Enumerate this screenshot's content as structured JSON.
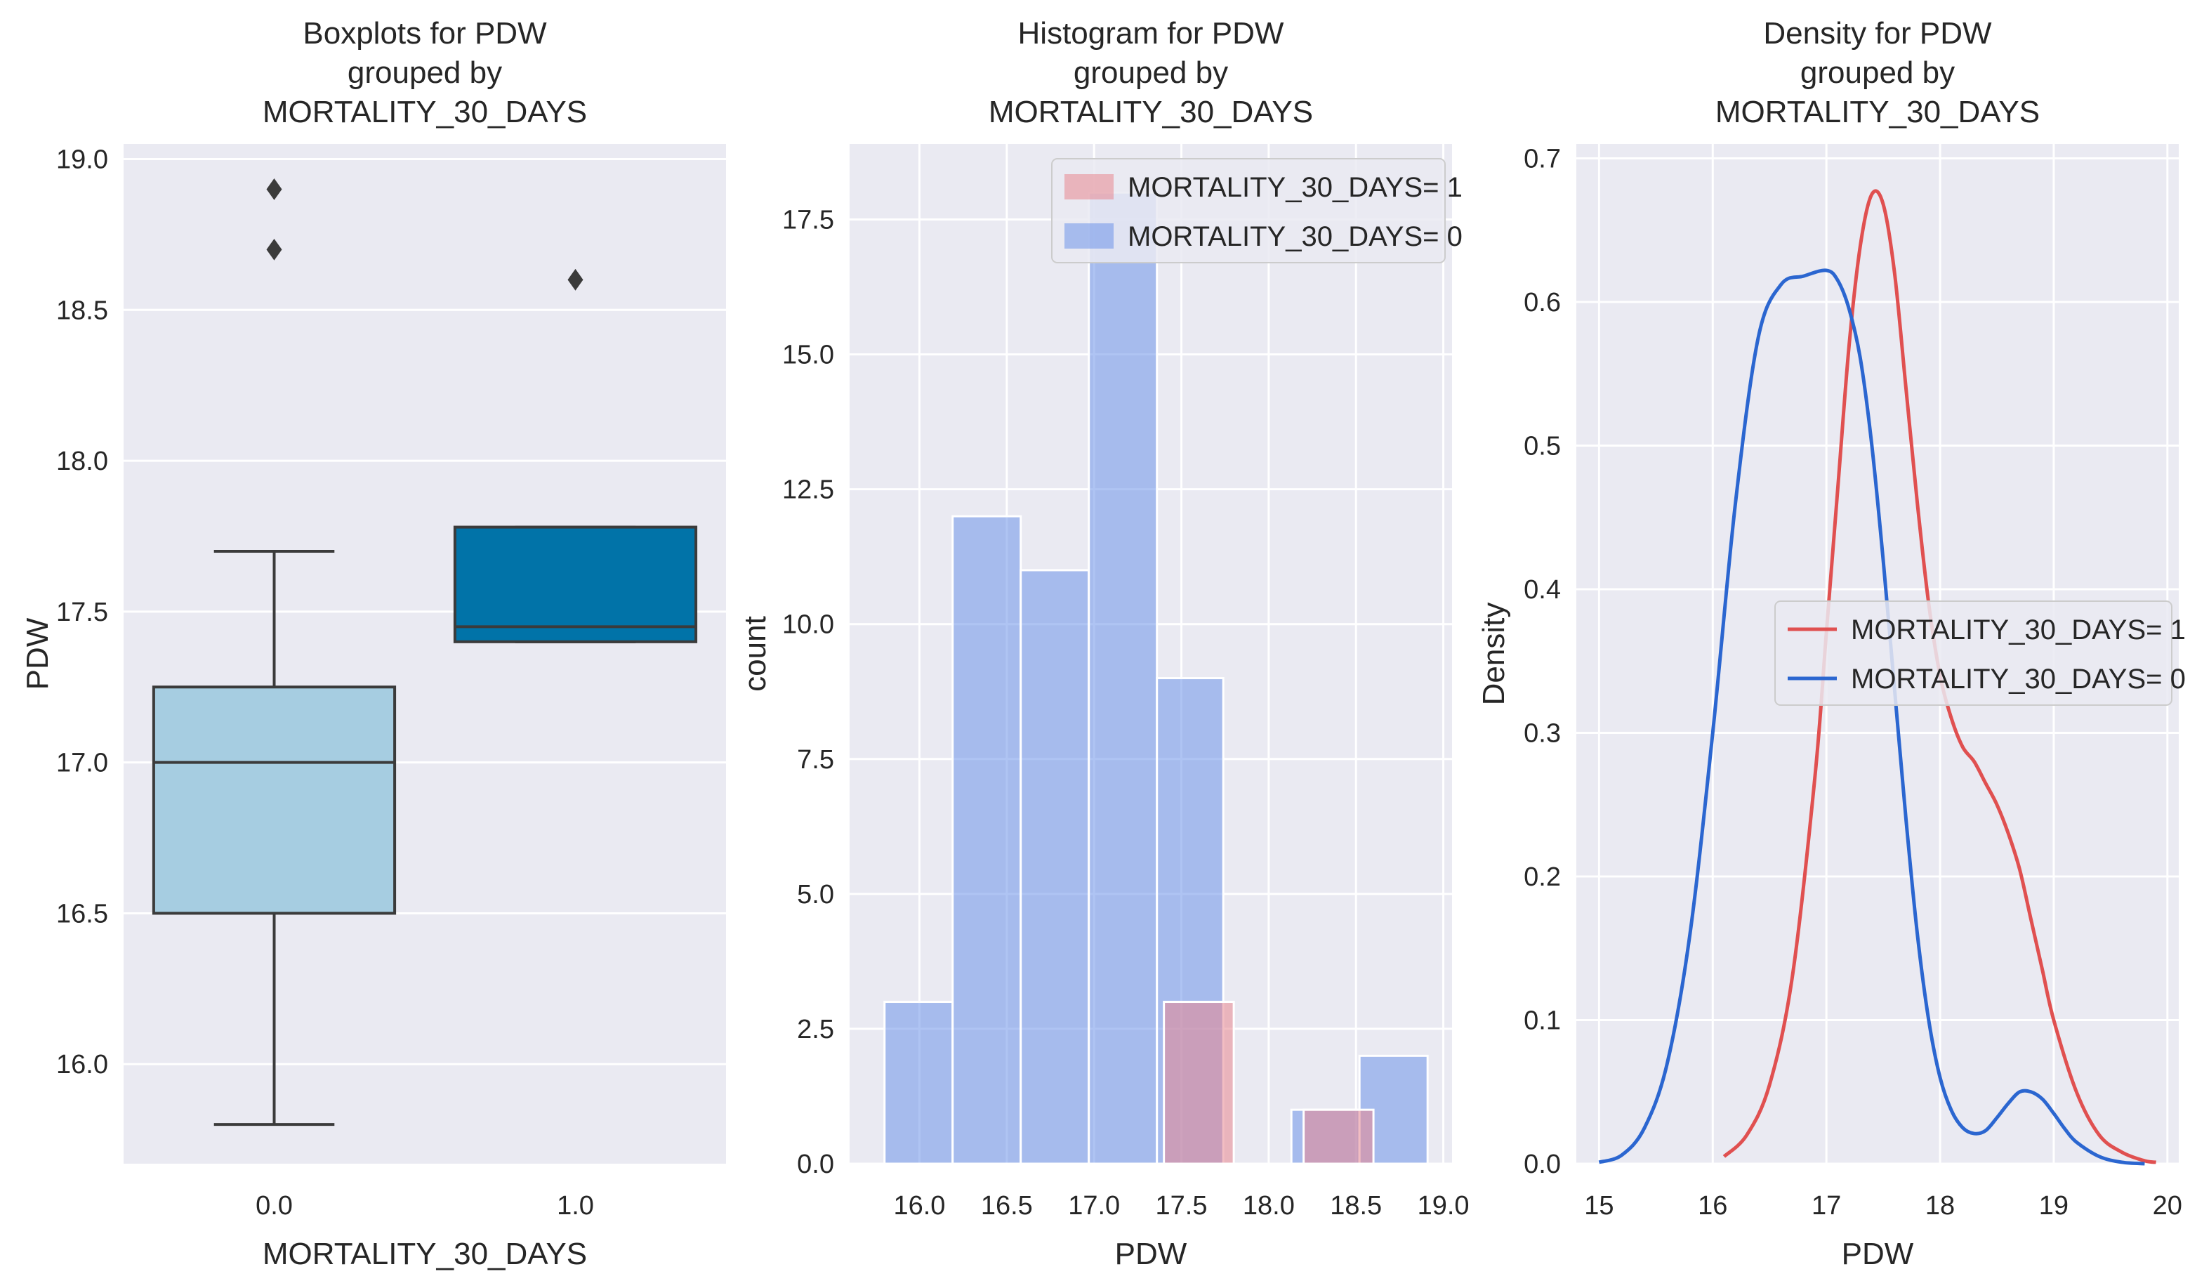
{
  "figure": {
    "background": "#ffffff",
    "panel_background": "#eaeaf2",
    "grid_color": "#ffffff",
    "text_color": "#262626"
  },
  "chart_data": [
    {
      "type": "box",
      "title": [
        "Boxplots for PDW",
        "grouped by",
        "MORTALITY_30_DAYS"
      ],
      "xlabel": "MORTALITY_30_DAYS",
      "ylabel": "PDW",
      "categories": [
        "0.0",
        "1.0"
      ],
      "ylim": [
        15.67,
        19.05
      ],
      "yticks": [
        16.0,
        16.5,
        17.0,
        17.5,
        18.0,
        18.5,
        19.0
      ],
      "ytick_labels": [
        "16.0",
        "16.5",
        "17.0",
        "17.5",
        "18.0",
        "18.5",
        "19.0"
      ],
      "grid": true,
      "boxes": [
        {
          "category": "0.0",
          "whisker_low": 15.8,
          "q1": 16.5,
          "median": 17.0,
          "q3": 17.25,
          "whisker_high": 17.7,
          "outliers": [
            18.7,
            18.9
          ],
          "color": "#a6cde1"
        },
        {
          "category": "1.0",
          "whisker_low": 17.4,
          "q1": 17.4,
          "median": 17.45,
          "q3": 17.78,
          "whisker_high": 17.78,
          "outliers": [
            18.6
          ],
          "color": "#0173a8"
        }
      ]
    },
    {
      "type": "histogram",
      "title": [
        "Histogram for PDW",
        "grouped by",
        "MORTALITY_30_DAYS"
      ],
      "xlabel": "PDW",
      "ylabel": "count",
      "xlim": [
        15.6,
        19.05
      ],
      "ylim": [
        0,
        18.9
      ],
      "xticks": [
        16.0,
        16.5,
        17.0,
        17.5,
        18.0,
        18.5,
        19.0
      ],
      "xtick_labels": [
        "16.0",
        "16.5",
        "17.0",
        "17.5",
        "18.0",
        "18.5",
        "19.0"
      ],
      "yticks": [
        0,
        2.5,
        5,
        7.5,
        10,
        12.5,
        15,
        17.5
      ],
      "ytick_labels": [
        "0.0",
        "2.5",
        "5.0",
        "7.5",
        "10.0",
        "12.5",
        "15.0",
        "17.5"
      ],
      "grid": true,
      "legend_position": "upper right",
      "series": [
        {
          "name": "MORTALITY_30_DAYS= 1",
          "color": "#e8878f",
          "opacity": 0.55,
          "bins": [
            {
              "x0": 17.4,
              "x1": 17.8,
              "count": 3
            },
            {
              "x0": 18.2,
              "x1": 18.6,
              "count": 1
            }
          ]
        },
        {
          "name": "MORTALITY_30_DAYS= 0",
          "color": "#6d94ea",
          "opacity": 0.55,
          "bins": [
            {
              "x0": 15.8,
              "x1": 16.19,
              "count": 3
            },
            {
              "x0": 16.19,
              "x1": 16.58,
              "count": 12
            },
            {
              "x0": 16.58,
              "x1": 16.97,
              "count": 11
            },
            {
              "x0": 16.97,
              "x1": 17.36,
              "count": 18
            },
            {
              "x0": 17.36,
              "x1": 17.74,
              "count": 9
            },
            {
              "x0": 17.74,
              "x1": 18.13,
              "count": 0
            },
            {
              "x0": 18.13,
              "x1": 18.52,
              "count": 1
            },
            {
              "x0": 18.52,
              "x1": 18.91,
              "count": 2
            }
          ]
        }
      ]
    },
    {
      "type": "line",
      "title": [
        "Density for PDW",
        "grouped by",
        "MORTALITY_30_DAYS"
      ],
      "xlabel": "PDW",
      "ylabel": "Density",
      "xlim": [
        14.8,
        20.1
      ],
      "ylim": [
        0,
        0.71
      ],
      "xticks": [
        15,
        16,
        17,
        18,
        19,
        20
      ],
      "xtick_labels": [
        "15",
        "16",
        "17",
        "18",
        "19",
        "20"
      ],
      "yticks": [
        0,
        0.1,
        0.2,
        0.3,
        0.4,
        0.5,
        0.6,
        0.7
      ],
      "ytick_labels": [
        "0.0",
        "0.1",
        "0.2",
        "0.3",
        "0.4",
        "0.5",
        "0.6",
        "0.7"
      ],
      "grid": true,
      "legend_position": "center right",
      "series": [
        {
          "name": "MORTALITY_30_DAYS= 1",
          "color": "#e05050",
          "x": [
            16.1,
            16.3,
            16.5,
            16.7,
            16.9,
            17.0,
            17.1,
            17.2,
            17.3,
            17.4,
            17.5,
            17.6,
            17.7,
            17.8,
            17.9,
            18.0,
            18.1,
            18.2,
            18.3,
            18.4,
            18.5,
            18.6,
            18.7,
            18.8,
            18.9,
            19.0,
            19.2,
            19.4,
            19.6,
            19.8,
            19.9
          ],
          "y": [
            0.005,
            0.02,
            0.055,
            0.13,
            0.27,
            0.37,
            0.47,
            0.57,
            0.64,
            0.675,
            0.668,
            0.62,
            0.54,
            0.46,
            0.39,
            0.34,
            0.31,
            0.29,
            0.28,
            0.265,
            0.25,
            0.23,
            0.205,
            0.17,
            0.135,
            0.1,
            0.05,
            0.02,
            0.008,
            0.002,
            0.001
          ]
        },
        {
          "name": "MORTALITY_30_DAYS= 0",
          "color": "#2b66d0",
          "x": [
            15.0,
            15.2,
            15.4,
            15.6,
            15.8,
            16.0,
            16.2,
            16.4,
            16.6,
            16.8,
            17.0,
            17.1,
            17.2,
            17.3,
            17.4,
            17.5,
            17.6,
            17.7,
            17.8,
            17.9,
            18.0,
            18.1,
            18.2,
            18.3,
            18.4,
            18.5,
            18.6,
            18.7,
            18.8,
            18.9,
            19.0,
            19.1,
            19.2,
            19.4,
            19.6,
            19.8
          ],
          "y": [
            0.001,
            0.006,
            0.025,
            0.07,
            0.16,
            0.3,
            0.46,
            0.575,
            0.612,
            0.618,
            0.622,
            0.615,
            0.595,
            0.56,
            0.5,
            0.42,
            0.33,
            0.24,
            0.16,
            0.1,
            0.06,
            0.037,
            0.025,
            0.021,
            0.023,
            0.032,
            0.042,
            0.05,
            0.05,
            0.045,
            0.035,
            0.024,
            0.015,
            0.005,
            0.001,
            0.0
          ]
        }
      ]
    }
  ]
}
